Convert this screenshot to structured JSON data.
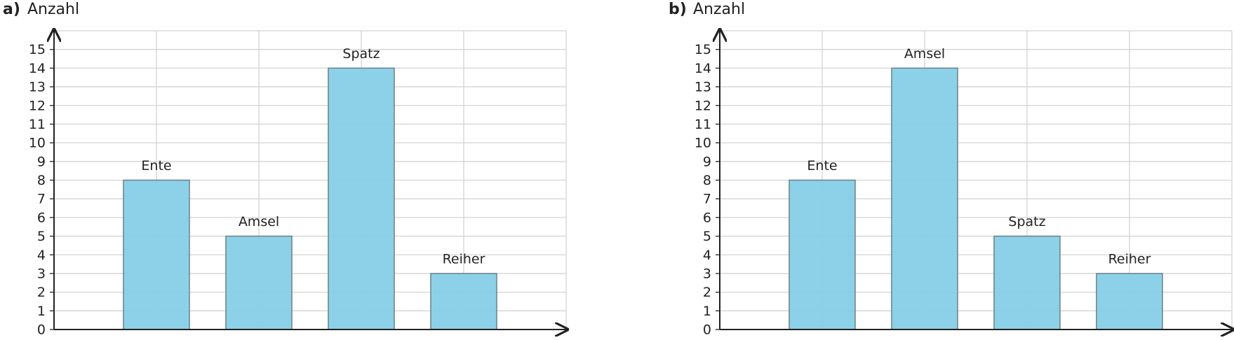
{
  "chart_data": [
    {
      "type": "bar",
      "label": "a)",
      "title": "Anzahl",
      "categories": [
        "Ente",
        "Amsel",
        "Spatz",
        "Reiher"
      ],
      "values": [
        8,
        5,
        14,
        3
      ],
      "color": "#86cfe7",
      "ylim": [
        0,
        16
      ],
      "yticks": [
        0,
        1,
        2,
        3,
        4,
        5,
        6,
        7,
        8,
        9,
        10,
        11,
        12,
        13,
        14,
        15
      ],
      "grid": true
    },
    {
      "type": "bar",
      "label": "b)",
      "title": "Anzahl",
      "categories": [
        "Ente",
        "Amsel",
        "Spatz",
        "Reiher"
      ],
      "values": [
        8,
        14,
        5,
        3
      ],
      "color": "#86cfe7",
      "ylim": [
        0,
        16
      ],
      "yticks": [
        0,
        1,
        2,
        3,
        4,
        5,
        6,
        7,
        8,
        9,
        10,
        11,
        12,
        13,
        14,
        15
      ],
      "grid": true
    }
  ]
}
